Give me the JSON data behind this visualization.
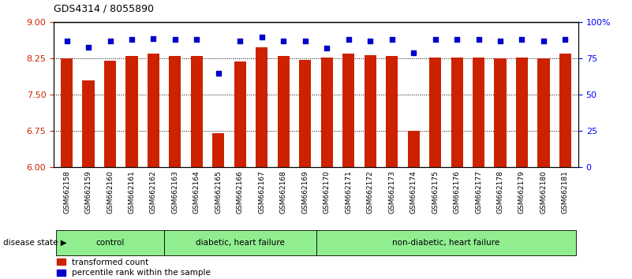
{
  "title": "GDS4314 / 8055890",
  "samples": [
    "GSM662158",
    "GSM662159",
    "GSM662160",
    "GSM662161",
    "GSM662162",
    "GSM662163",
    "GSM662164",
    "GSM662165",
    "GSM662166",
    "GSM662167",
    "GSM662168",
    "GSM662169",
    "GSM662170",
    "GSM662171",
    "GSM662172",
    "GSM662173",
    "GSM662174",
    "GSM662175",
    "GSM662176",
    "GSM662177",
    "GSM662178",
    "GSM662179",
    "GSM662180",
    "GSM662181"
  ],
  "red_values": [
    8.25,
    7.8,
    8.2,
    8.3,
    8.35,
    8.3,
    8.3,
    6.7,
    8.19,
    8.48,
    8.3,
    8.22,
    8.27,
    8.35,
    8.32,
    8.3,
    6.75,
    8.27,
    8.27,
    8.27,
    8.25,
    8.27,
    8.25,
    8.35
  ],
  "blue_values": [
    87,
    83,
    87,
    88,
    89,
    88,
    88,
    65,
    87,
    90,
    87,
    87,
    82,
    88,
    87,
    88,
    79,
    88,
    88,
    88,
    87,
    88,
    87,
    88
  ],
  "group_boundaries": [
    0,
    5,
    12,
    24
  ],
  "group_labels": [
    "control",
    "diabetic, heart failure",
    "non-diabetic, heart failure"
  ],
  "ylim_left": [
    6,
    9
  ],
  "ylim_right": [
    0,
    100
  ],
  "yticks_left": [
    6,
    6.75,
    7.5,
    8.25,
    9
  ],
  "yticks_right": [
    0,
    25,
    50,
    75,
    100
  ],
  "bar_color": "#CC2200",
  "dot_color": "#0000CC",
  "disease_state_label": "disease state",
  "legend_red": "transformed count",
  "legend_blue": "percentile rank within the sample",
  "group_green": "#90EE90",
  "tick_bg": "#c8c8c8"
}
